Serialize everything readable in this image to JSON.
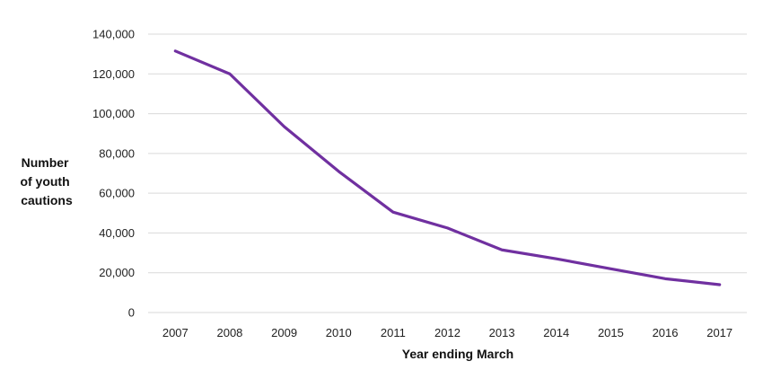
{
  "chart_data": {
    "type": "line",
    "title": "",
    "xlabel": "Year ending March",
    "ylabel_lines": [
      "Number",
      "of youth",
      "cautions"
    ],
    "categories": [
      "2007",
      "2008",
      "2009",
      "2010",
      "2011",
      "2012",
      "2013",
      "2014",
      "2015",
      "2016",
      "2017"
    ],
    "series": [
      {
        "values": [
          131500,
          120000,
          93500,
          71000,
          50500,
          42500,
          31500,
          27000,
          22000,
          17000,
          14000
        ],
        "color": "#7030a0"
      }
    ],
    "ylim": [
      0,
      140000
    ],
    "yticks": [
      0,
      20000,
      40000,
      60000,
      80000,
      100000,
      120000,
      140000
    ],
    "ytick_labels": [
      "0",
      "20,000",
      "40,000",
      "60,000",
      "80,000",
      "100,000",
      "120,000",
      "140,000"
    ],
    "grid": true,
    "legend": "none"
  }
}
